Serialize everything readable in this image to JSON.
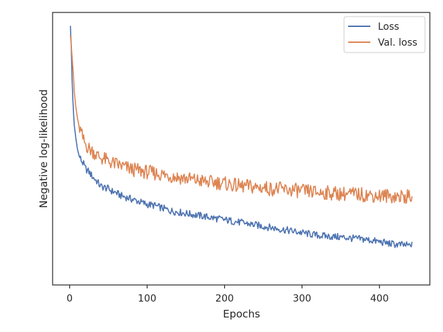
{
  "chart_data": {
    "type": "line",
    "title": "",
    "xlabel": "Epochs",
    "ylabel": "Negative log-likelihood",
    "xlim": [
      -22,
      465
    ],
    "ylim": [
      0,
      1
    ],
    "xticks": [
      0,
      100,
      200,
      300,
      400
    ],
    "y_tick_labels_shown": false,
    "grid": false,
    "legend_position": "top-right",
    "series": [
      {
        "name": "Loss",
        "color": "#4c72b0",
        "points": [
          [
            1,
            0.975
          ],
          [
            2,
            0.9
          ],
          [
            3,
            0.78
          ],
          [
            4,
            0.7
          ],
          [
            5,
            0.64
          ],
          [
            6,
            0.59
          ],
          [
            8,
            0.54
          ],
          [
            10,
            0.5
          ],
          [
            12,
            0.475
          ],
          [
            15,
            0.455
          ],
          [
            18,
            0.44
          ],
          [
            20,
            0.425
          ],
          [
            25,
            0.41
          ],
          [
            30,
            0.39
          ],
          [
            35,
            0.375
          ],
          [
            40,
            0.355
          ],
          [
            45,
            0.35
          ],
          [
            50,
            0.345
          ],
          [
            55,
            0.335
          ],
          [
            60,
            0.33
          ],
          [
            65,
            0.32
          ],
          [
            70,
            0.315
          ],
          [
            75,
            0.31
          ],
          [
            80,
            0.305
          ],
          [
            85,
            0.3
          ],
          [
            90,
            0.295
          ],
          [
            100,
            0.285
          ],
          [
            110,
            0.28
          ],
          [
            120,
            0.27
          ],
          [
            130,
            0.26
          ],
          [
            140,
            0.255
          ],
          [
            150,
            0.25
          ],
          [
            160,
            0.245
          ],
          [
            170,
            0.24
          ],
          [
            180,
            0.235
          ],
          [
            190,
            0.23
          ],
          [
            200,
            0.225
          ],
          [
            210,
            0.22
          ],
          [
            220,
            0.215
          ],
          [
            230,
            0.21
          ],
          [
            240,
            0.205
          ],
          [
            250,
            0.2
          ],
          [
            260,
            0.195
          ],
          [
            270,
            0.19
          ],
          [
            280,
            0.185
          ],
          [
            290,
            0.18
          ],
          [
            300,
            0.175
          ],
          [
            310,
            0.17
          ],
          [
            320,
            0.165
          ],
          [
            330,
            0.162
          ],
          [
            340,
            0.16
          ],
          [
            350,
            0.158
          ],
          [
            360,
            0.155
          ],
          [
            370,
            0.152
          ],
          [
            380,
            0.15
          ],
          [
            390,
            0.145
          ],
          [
            400,
            0.14
          ],
          [
            410,
            0.135
          ],
          [
            420,
            0.13
          ],
          [
            430,
            0.128
          ],
          [
            440,
            0.125
          ],
          [
            442,
            0.14
          ]
        ]
      },
      {
        "name": "Val. loss",
        "color": "#dd8452",
        "points": [
          [
            1,
            0.94
          ],
          [
            2,
            0.9
          ],
          [
            3,
            0.86
          ],
          [
            4,
            0.82
          ],
          [
            5,
            0.78
          ],
          [
            6,
            0.72
          ],
          [
            8,
            0.66
          ],
          [
            10,
            0.62
          ],
          [
            12,
            0.59
          ],
          [
            15,
            0.56
          ],
          [
            18,
            0.53
          ],
          [
            20,
            0.52
          ],
          [
            25,
            0.5
          ],
          [
            30,
            0.49
          ],
          [
            35,
            0.475
          ],
          [
            40,
            0.465
          ],
          [
            45,
            0.46
          ],
          [
            50,
            0.45
          ],
          [
            55,
            0.445
          ],
          [
            60,
            0.44
          ],
          [
            65,
            0.435
          ],
          [
            70,
            0.43
          ],
          [
            75,
            0.425
          ],
          [
            80,
            0.42
          ],
          [
            90,
            0.415
          ],
          [
            100,
            0.41
          ],
          [
            110,
            0.405
          ],
          [
            120,
            0.4
          ],
          [
            130,
            0.395
          ],
          [
            140,
            0.39
          ],
          [
            150,
            0.385
          ],
          [
            160,
            0.38
          ],
          [
            170,
            0.375
          ],
          [
            180,
            0.37
          ],
          [
            190,
            0.37
          ],
          [
            200,
            0.365
          ],
          [
            210,
            0.36
          ],
          [
            220,
            0.355
          ],
          [
            230,
            0.355
          ],
          [
            240,
            0.35
          ],
          [
            250,
            0.35
          ],
          [
            260,
            0.345
          ],
          [
            270,
            0.345
          ],
          [
            280,
            0.34
          ],
          [
            290,
            0.34
          ],
          [
            300,
            0.335
          ],
          [
            310,
            0.335
          ],
          [
            320,
            0.33
          ],
          [
            330,
            0.33
          ],
          [
            340,
            0.328
          ],
          [
            350,
            0.326
          ],
          [
            360,
            0.325
          ],
          [
            370,
            0.324
          ],
          [
            380,
            0.322
          ],
          [
            390,
            0.32
          ],
          [
            400,
            0.318
          ],
          [
            410,
            0.318
          ],
          [
            420,
            0.316
          ],
          [
            430,
            0.315
          ],
          [
            440,
            0.314
          ],
          [
            442,
            0.316
          ]
        ]
      }
    ]
  }
}
